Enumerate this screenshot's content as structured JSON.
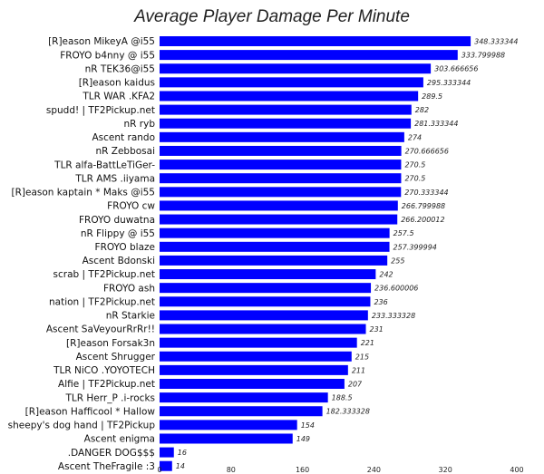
{
  "chart_data": {
    "type": "bar",
    "orientation": "horizontal",
    "title": "Average Player Damage Per Minute",
    "xlabel": "",
    "ylabel": "",
    "xlim": [
      0,
      400
    ],
    "xticks": [
      "0",
      "80",
      "160",
      "240",
      "320",
      "400"
    ],
    "grid": false,
    "bar_color": "#0000ff",
    "categories": [
      "[R]eason MikeyA @i55",
      "FROYO b4nny @ i55",
      "nR TEK36@i55",
      "[R]eason kaidus",
      "TLR WAR .KFA2",
      "spudd! | TF2Pickup.net",
      "nR ryb",
      "Ascent rando",
      "nR Zebbosai",
      "TLR alfa-BattLeTiGer-",
      "TLR AMS .iiyama",
      "[R]eason kaptain * Maks @i55",
      "FROYO cw",
      "FROYO duwatna",
      "nR Flippy @ i55",
      "FROYO blaze",
      "Ascent Bdonski",
      "scrab | TF2Pickup.net",
      "FROYO ash",
      "nation | TF2Pickup.net",
      "nR Starkie",
      "Ascent SaVeyourRrRr!!",
      "[R]eason Forsak3n",
      "Ascent Shrugger",
      "TLR NiCO .YOYOTECH",
      "Alfie | TF2Pickup.net",
      "TLR Herr_P .i-rocks",
      "[R]eason Hafficool * Hallow",
      "sheepy's dog hand | TF2Pickup",
      "Ascent enigma",
      ".DANGER DOG$$$",
      "Ascent TheFragile :3"
    ],
    "values": [
      348.333344,
      333.799988,
      303.666656,
      295.333344,
      289.5,
      282,
      281.333344,
      274,
      270.666656,
      270.5,
      270.5,
      270.333344,
      266.799988,
      266.200012,
      257.5,
      257.399994,
      255,
      242,
      236.600006,
      236,
      233.333328,
      231,
      221,
      215,
      211,
      207,
      188.5,
      182.333328,
      154,
      149,
      16,
      14
    ],
    "value_labels": [
      "348.333344",
      "333.799988",
      "303.666656",
      "295.333344",
      "289.5",
      "282",
      "281.333344",
      "274",
      "270.666656",
      "270.5",
      "270.5",
      "270.333344",
      "266.799988",
      "266.200012",
      "257.5",
      "257.399994",
      "255",
      "242",
      "236.600006",
      "236",
      "233.333328",
      "231",
      "221",
      "215",
      "211",
      "207",
      "188.5",
      "182.333328",
      "154",
      "149",
      "16",
      "14"
    ]
  }
}
